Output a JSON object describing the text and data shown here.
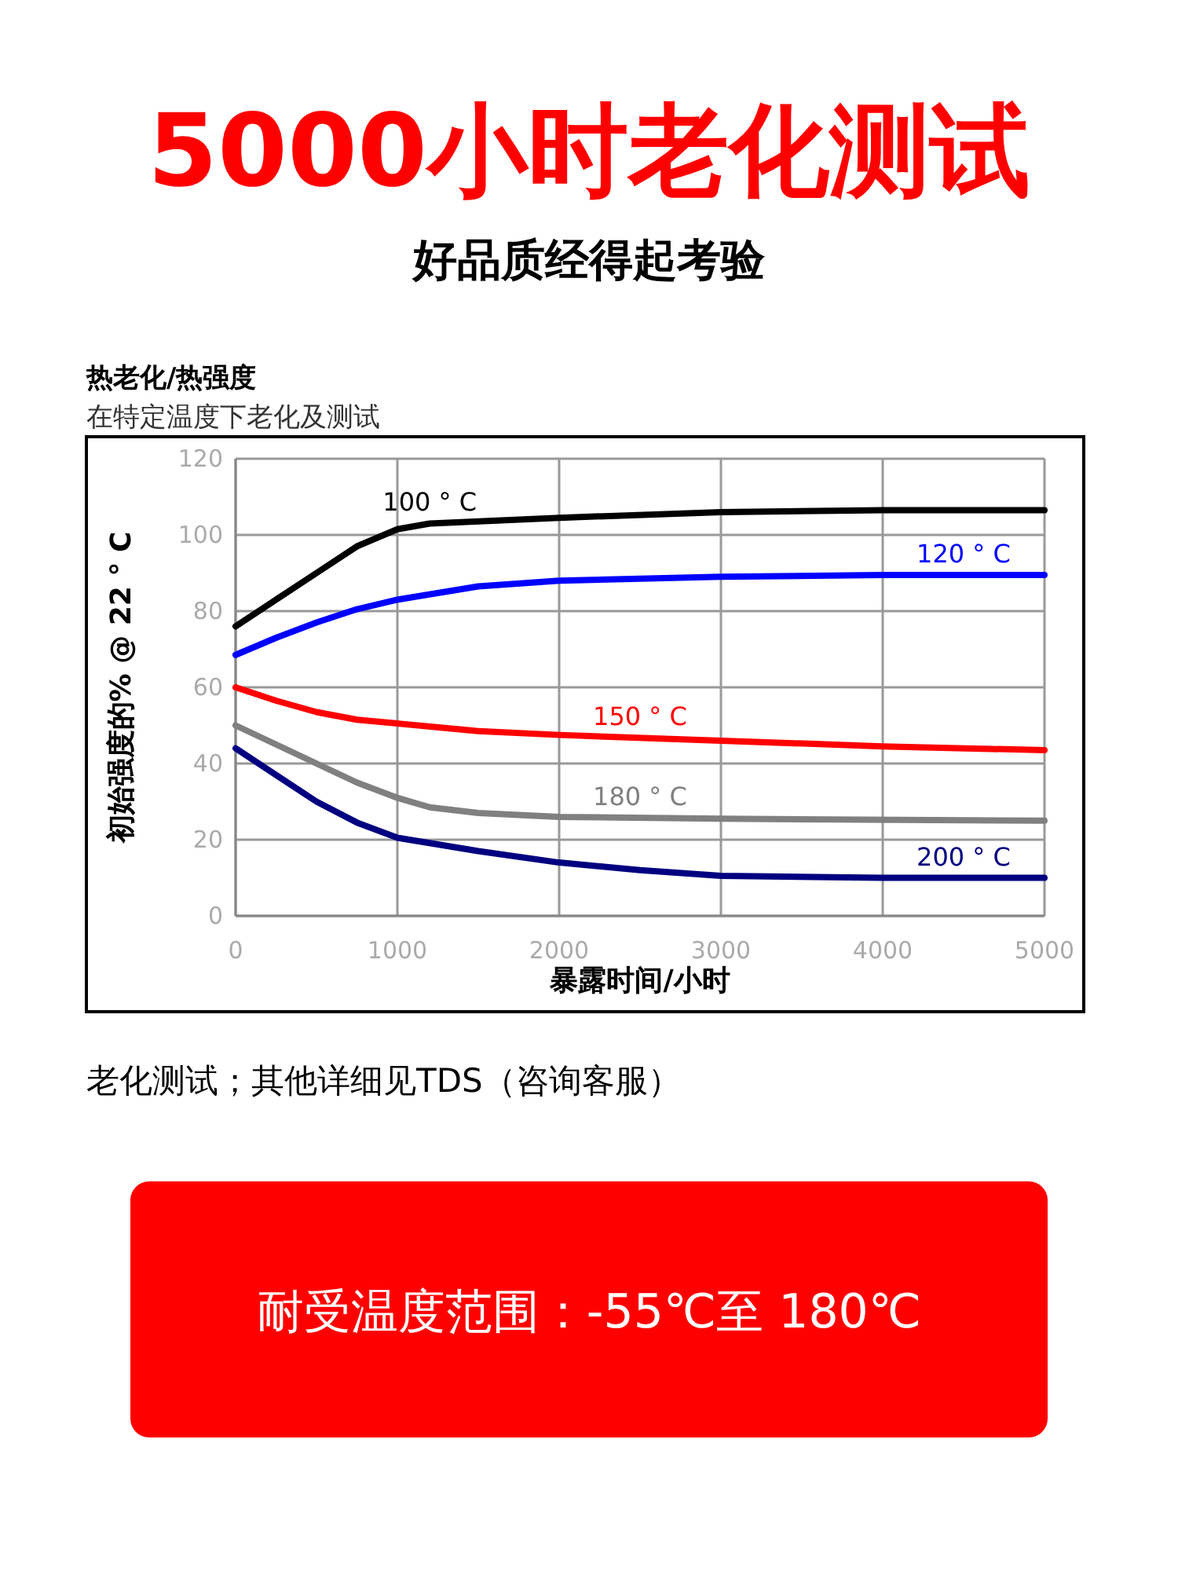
{
  "chart_data": {
    "type": "line",
    "title": "5000小时老化测试",
    "subtitle": "好品质经得起考验",
    "xlabel": "暴露时间/小时",
    "ylabel": "初始强度的% @ 22 ° C",
    "annotations": [
      "热老化/热强度",
      "在特定温度下老化及测试",
      "老化测试；其他详细见TDS（咨询客服）",
      "耐受温度范围：-55℃至 180℃"
    ],
    "xlim": [
      0,
      5000
    ],
    "ylim": [
      0,
      120
    ],
    "xticks": [
      0,
      1000,
      2000,
      3000,
      4000,
      5000
    ],
    "yticks": [
      0,
      20,
      40,
      60,
      80,
      100,
      120
    ],
    "grid": true,
    "series": [
      {
        "name": "100 ° C",
        "color": "#000000",
        "x": [
          0,
          250,
          500,
          750,
          1000,
          1200,
          2000,
          3000,
          4000,
          5000
        ],
        "values": [
          76,
          83,
          90,
          97,
          101.5,
          103,
          104.5,
          106,
          106.5,
          106.5
        ]
      },
      {
        "name": "120 ° C",
        "color": "#0000ff",
        "x": [
          0,
          250,
          500,
          750,
          1000,
          1500,
          2000,
          3000,
          4000,
          5000
        ],
        "values": [
          68.5,
          73,
          77,
          80.5,
          83,
          86.5,
          88,
          89,
          89.5,
          89.5
        ]
      },
      {
        "name": "150 ° C",
        "color": "#ff0000",
        "x": [
          0,
          250,
          500,
          750,
          1000,
          1500,
          2000,
          3000,
          4000,
          5000
        ],
        "values": [
          60,
          56.5,
          53.5,
          51.5,
          50.5,
          48.5,
          47.5,
          46,
          44.5,
          43.5
        ]
      },
      {
        "name": "180 ° C",
        "color": "#808080",
        "x": [
          0,
          250,
          500,
          750,
          1000,
          1200,
          1500,
          2000,
          3000,
          5000
        ],
        "values": [
          50,
          45,
          40,
          35,
          31,
          28.5,
          27,
          26,
          25.5,
          25
        ]
      },
      {
        "name": "200 ° C",
        "color": "#000080",
        "x": [
          0,
          250,
          500,
          750,
          1000,
          1500,
          2000,
          2500,
          3000,
          4000,
          5000
        ],
        "values": [
          44,
          37,
          30,
          24.5,
          20.5,
          17,
          14,
          12,
          10.5,
          10,
          10
        ]
      }
    ]
  }
}
